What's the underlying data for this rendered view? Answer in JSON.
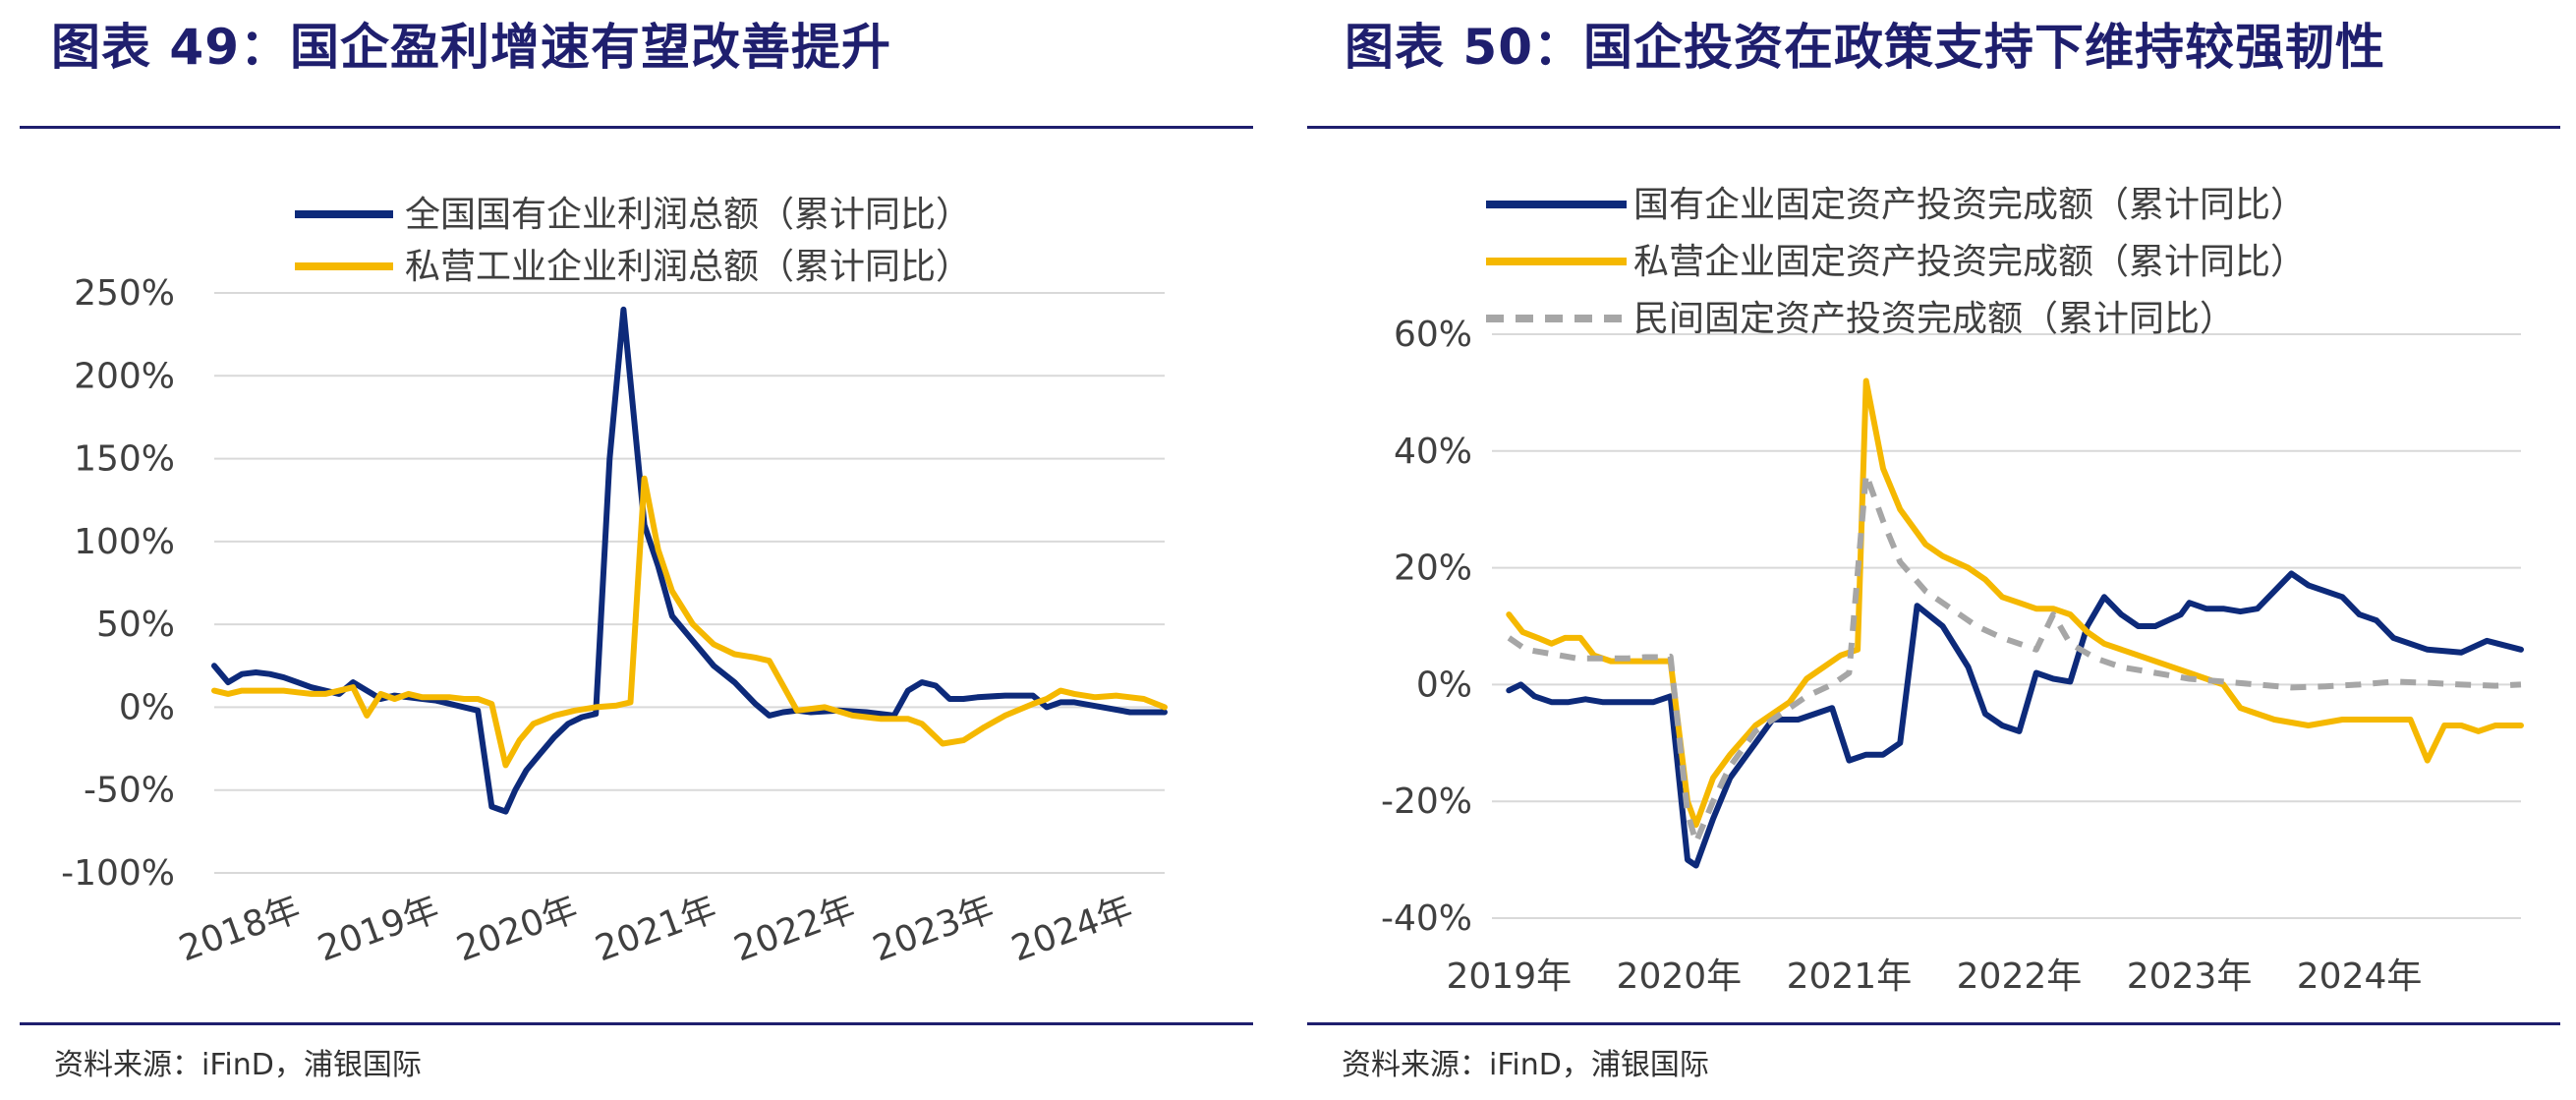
{
  "left_panel": {
    "title": "图表 49：国企盈利增速有望改善提升",
    "source": "资料来源：iFinD，浦银国际"
  },
  "right_panel": {
    "title": "图表 50：国企投资在政策支持下维持较强韧性",
    "source": "资料来源：iFinD，浦银国际"
  },
  "chart_data": [
    {
      "type": "line",
      "title": "",
      "ylim": [
        -100,
        250
      ],
      "y_ticks": [
        250,
        200,
        150,
        100,
        50,
        0,
        -50,
        -100
      ],
      "y_tick_labels": [
        "250%",
        "200%",
        "150%",
        "100%",
        "50%",
        "0%",
        "-50%",
        "-100%"
      ],
      "x_tick_labels": [
        "2018年",
        "2019年",
        "2020年",
        "2021年",
        "2022年",
        "2023年",
        "2024年"
      ],
      "x_tick_positions": [
        2018.0,
        2019.0,
        2020.0,
        2021.0,
        2022.0,
        2023.0,
        2024.0
      ],
      "xlim": [
        2018.0,
        2024.85
      ],
      "grid": true,
      "legend_position": "top",
      "series": [
        {
          "name": "全国国有企业利润总额（累计同比）",
          "color": "#0d2a7a",
          "dash": "solid",
          "x": [
            2018.0,
            2018.1,
            2018.2,
            2018.3,
            2018.4,
            2018.5,
            2018.6,
            2018.7,
            2018.8,
            2018.9,
            2019.0,
            2019.1,
            2019.2,
            2019.3,
            2019.4,
            2019.5,
            2019.6,
            2019.7,
            2019.8,
            2019.9,
            2020.0,
            2020.1,
            2020.17,
            2020.25,
            2020.35,
            2020.45,
            2020.55,
            2020.65,
            2020.75,
            2020.85,
            2020.95,
            2021.1,
            2021.2,
            2021.3,
            2021.45,
            2021.6,
            2021.75,
            2021.9,
            2022.0,
            2022.1,
            2022.2,
            2022.3,
            2022.5,
            2022.7,
            2022.9,
            2023.0,
            2023.1,
            2023.2,
            2023.3,
            2023.4,
            2023.5,
            2023.7,
            2023.9,
            2024.0,
            2024.1,
            2024.2,
            2024.4,
            2024.6,
            2024.85
          ],
          "y": [
            25,
            15,
            20,
            21,
            20,
            18,
            15,
            12,
            10,
            8,
            15,
            10,
            5,
            7,
            6,
            5,
            4,
            2,
            0,
            -2,
            -60,
            -63,
            -50,
            -38,
            -28,
            -18,
            -10,
            -6,
            -4,
            150,
            240,
            110,
            85,
            55,
            40,
            25,
            15,
            2,
            -5,
            -3,
            -2,
            -3,
            -2,
            -3,
            -5,
            10,
            15,
            13,
            5,
            5,
            6,
            7,
            7,
            0,
            3,
            3,
            0,
            -3,
            -3
          ]
        },
        {
          "name": "私营工业企业利润总额（累计同比）",
          "color": "#f5b800",
          "dash": "solid",
          "x": [
            2018.0,
            2018.1,
            2018.2,
            2018.3,
            2018.4,
            2018.5,
            2018.6,
            2018.7,
            2018.8,
            2018.9,
            2019.0,
            2019.1,
            2019.2,
            2019.3,
            2019.4,
            2019.5,
            2019.6,
            2019.7,
            2019.8,
            2019.9,
            2020.0,
            2020.1,
            2020.2,
            2020.3,
            2020.45,
            2020.6,
            2020.75,
            2020.9,
            2021.0,
            2021.1,
            2021.2,
            2021.3,
            2021.45,
            2021.6,
            2021.75,
            2021.9,
            2022.0,
            2022.2,
            2022.4,
            2022.6,
            2022.8,
            2023.0,
            2023.1,
            2023.25,
            2023.4,
            2023.55,
            2023.7,
            2023.9,
            2024.0,
            2024.1,
            2024.2,
            2024.35,
            2024.5,
            2024.7,
            2024.85
          ],
          "y": [
            10,
            8,
            10,
            10,
            10,
            10,
            9,
            8,
            8,
            10,
            12,
            -5,
            8,
            5,
            8,
            6,
            6,
            6,
            5,
            5,
            2,
            -35,
            -20,
            -10,
            -5,
            -2,
            0,
            1,
            3,
            138,
            95,
            70,
            50,
            38,
            32,
            30,
            28,
            -2,
            0,
            -5,
            -7,
            -7,
            -10,
            -22,
            -20,
            -12,
            -5,
            2,
            5,
            10,
            8,
            6,
            7,
            5,
            0
          ]
        }
      ]
    },
    {
      "type": "line",
      "title": "",
      "ylim": [
        -40,
        60
      ],
      "y_ticks": [
        60,
        40,
        20,
        0,
        -20,
        -40
      ],
      "y_tick_labels": [
        "60%",
        "40%",
        "20%",
        "0%",
        "-20%",
        "-40%"
      ],
      "x_tick_labels": [
        "2019年",
        "2020年",
        "2021年",
        "2022年",
        "2023年",
        "2024年"
      ],
      "x_tick_positions": [
        2019.0,
        2020.0,
        2021.0,
        2022.0,
        2023.0,
        2024.0
      ],
      "xlim": [
        2018.9,
        2024.95
      ],
      "grid": true,
      "legend_position": "top",
      "series": [
        {
          "name": "国有企业固定资产投资完成额（累计同比）",
          "color": "#0d2a7a",
          "dash": "solid",
          "x": [
            2019.0,
            2019.07,
            2019.15,
            2019.25,
            2019.35,
            2019.45,
            2019.55,
            2019.65,
            2019.75,
            2019.85,
            2019.95,
            2020.05,
            2020.1,
            2020.2,
            2020.3,
            2020.45,
            2020.55,
            2020.7,
            2020.8,
            2020.9,
            2021.0,
            2021.1,
            2021.2,
            2021.3,
            2021.4,
            2021.55,
            2021.7,
            2021.8,
            2021.9,
            2022.0,
            2022.1,
            2022.2,
            2022.3,
            2022.4,
            2022.5,
            2022.6,
            2022.7,
            2022.8,
            2022.95,
            2023.0,
            2023.1,
            2023.2,
            2023.3,
            2023.4,
            2023.5,
            2023.6,
            2023.7,
            2023.9,
            2024.0,
            2024.1,
            2024.2,
            2024.4,
            2024.6,
            2024.75,
            2024.95
          ],
          "y": [
            -1,
            0,
            -2,
            -3,
            -3,
            -2.5,
            -3,
            -3,
            -3,
            -3,
            -2,
            -30,
            -31,
            -23,
            -16,
            -10,
            -6,
            -6,
            -5,
            -4,
            -13,
            -12,
            -12,
            -10,
            13.5,
            10,
            3,
            -5,
            -7,
            -8,
            2,
            1,
            0.5,
            10,
            15,
            12,
            10,
            10,
            12,
            14,
            13,
            13,
            12.5,
            13,
            16,
            19,
            17,
            15,
            12,
            11,
            8,
            6,
            5.5,
            7.5,
            6
          ]
        },
        {
          "name": "私营企业固定资产投资完成额（累计同比）",
          "color": "#f5b800",
          "dash": "solid",
          "x": [
            2019.0,
            2019.08,
            2019.17,
            2019.25,
            2019.33,
            2019.42,
            2019.5,
            2019.6,
            2019.75,
            2019.9,
            2019.95,
            2020.05,
            2020.1,
            2020.2,
            2020.3,
            2020.45,
            2020.55,
            2020.65,
            2020.75,
            2020.85,
            2020.95,
            2021.05,
            2021.1,
            2021.2,
            2021.3,
            2021.45,
            2021.55,
            2021.7,
            2021.8,
            2021.9,
            2022.0,
            2022.1,
            2022.2,
            2022.3,
            2022.4,
            2022.5,
            2022.7,
            2022.9,
            2023.0,
            2023.1,
            2023.2,
            2023.3,
            2023.4,
            2023.5,
            2023.7,
            2023.9,
            2024.0,
            2024.1,
            2024.2,
            2024.3,
            2024.4,
            2024.5,
            2024.6,
            2024.7,
            2024.8,
            2024.95
          ],
          "y": [
            12,
            9,
            8,
            7,
            8,
            8,
            5,
            4,
            4,
            4,
            4,
            -20,
            -24,
            -16,
            -12,
            -7,
            -5,
            -3,
            1,
            3,
            5,
            6,
            52,
            37,
            30,
            24,
            22,
            20,
            18,
            15,
            14,
            13,
            13,
            12,
            9,
            7,
            5,
            3,
            2,
            1,
            0,
            -4,
            -5,
            -6,
            -7,
            -6,
            -6,
            -6,
            -6,
            -6,
            -13,
            -7,
            -7,
            -8,
            -7,
            -7
          ]
        },
        {
          "name": "民间固定资产投资完成额（累计同比）",
          "color": "#a6a6a6",
          "dash": "dashed",
          "x": [
            2019.0,
            2019.1,
            2019.2,
            2019.3,
            2019.4,
            2019.5,
            2019.6,
            2019.7,
            2019.8,
            2019.9,
            2019.95,
            2020.05,
            2020.1,
            2020.2,
            2020.3,
            2020.45,
            2020.6,
            2020.75,
            2020.9,
            2021.0,
            2021.1,
            2021.2,
            2021.3,
            2021.45,
            2021.6,
            2021.75,
            2021.9,
            2022.0,
            2022.1,
            2022.2,
            2022.3,
            2022.45,
            2022.6,
            2022.8,
            2023.0,
            2023.2,
            2023.4,
            2023.6,
            2023.8,
            2024.0,
            2024.2,
            2024.4,
            2024.6,
            2024.8,
            2024.95
          ],
          "y": [
            8,
            6,
            5.5,
            5,
            4.5,
            4.5,
            4.5,
            4.5,
            4.7,
            4.7,
            4.8,
            -22,
            -27,
            -20,
            -14,
            -8,
            -5,
            -2,
            0,
            2,
            36,
            28,
            21,
            16,
            13,
            10,
            8,
            7,
            6,
            12,
            7,
            4.5,
            3,
            2,
            1,
            0.5,
            0,
            -0.5,
            -0.3,
            0,
            0.5,
            0.3,
            0,
            -0.2,
            0
          ]
        }
      ]
    }
  ]
}
